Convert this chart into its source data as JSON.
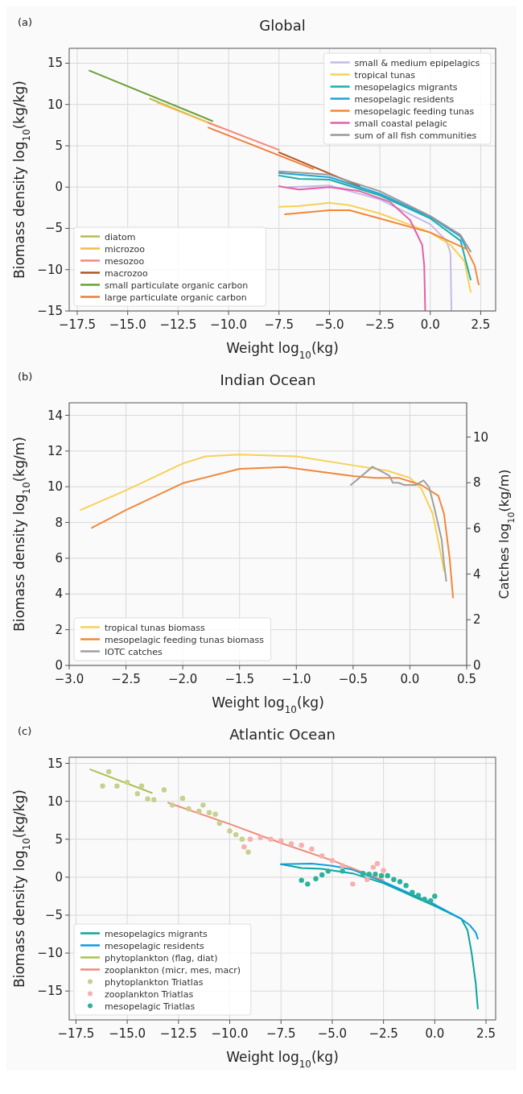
{
  "chart_data": [
    {
      "type": "line",
      "title": "Global",
      "xlabel": "Weight log$_{10}$(kg)",
      "ylabel": "Biomass density log$_{10}$(kg/kg)",
      "annotations": [
        "(a)"
      ],
      "xlim": [
        -17.9,
        3.24
      ],
      "ylim": [
        -15,
        16.8
      ],
      "xticks": [
        {
          "value": -17.5,
          "label": "−17.5"
        },
        {
          "value": -15,
          "label": "−15.0"
        },
        {
          "value": -12.5,
          "label": "−12.5"
        },
        {
          "value": -10,
          "label": "−10.0"
        },
        {
          "value": -7.5,
          "label": "−7.5"
        },
        {
          "value": -5,
          "label": "−5.0"
        },
        {
          "value": -2.5,
          "label": "−2.5"
        },
        {
          "value": 0,
          "label": "0.0"
        },
        {
          "value": 2.5,
          "label": "2.5"
        }
      ],
      "yticks": [
        {
          "value": -15,
          "label": "−15"
        },
        {
          "value": -10,
          "label": "−10"
        },
        {
          "value": -5,
          "label": "−5"
        },
        0,
        5,
        10,
        15
      ],
      "grid": true,
      "legend": "bottom left",
      "series": [
        {
          "name": "diatom",
          "color": "#b5bd4c",
          "x": [
            -13.9,
            -10.8
          ],
          "values": [
            10.7,
            7.6
          ]
        },
        {
          "name": "microzoo",
          "color": "#f6b94c",
          "x": [
            -13.5,
            -10.5
          ],
          "values": [
            10.2,
            7.3
          ]
        },
        {
          "name": "mesozoo",
          "color": "#f7877a",
          "x": [
            -11,
            -7.5
          ],
          "values": [
            7.8,
            4.5
          ]
        },
        {
          "name": "macrozoo",
          "color": "#b5531c",
          "x": [
            -7.5,
            -3.5
          ],
          "values": [
            4.2,
            0.1
          ]
        },
        {
          "name": "small particulate organic carbon",
          "color": "#6a9f35",
          "x": [
            -16.9,
            -10.8
          ],
          "values": [
            14.1,
            8.0
          ]
        },
        {
          "name": "large particulate organic carbon",
          "color": "#ef7d3a",
          "x": [
            -11,
            -5.8
          ],
          "values": [
            7.2,
            2.2
          ]
        },
        {
          "name": "small & medium epipelagics",
          "color": "#c7b9e8",
          "x": [
            -7,
            -5,
            -2.5,
            0,
            0.8,
            1.0,
            1.05
          ],
          "values": [
            0.0,
            0.2,
            -1.5,
            -4.5,
            -6.5,
            -8,
            -15
          ]
        },
        {
          "name": "tropical tunas",
          "color": "#f7d154",
          "x": [
            -7.5,
            -6.5,
            -5,
            -4,
            -2.5,
            0,
            1,
            1.7,
            2
          ],
          "values": [
            -2.4,
            -2.3,
            -1.9,
            -2.2,
            -3.2,
            -5.5,
            -7,
            -9,
            -12.7
          ]
        },
        {
          "name": "mesopelagics migrants",
          "color": "#1aaeaa",
          "x": [
            -7.5,
            -6.5,
            -5,
            -2.5,
            0,
            1.5,
            2.0
          ],
          "values": [
            1.4,
            1.0,
            0.9,
            -1.0,
            -3.8,
            -6.5,
            -11.2
          ]
        },
        {
          "name": "mesopelagic residents",
          "color": "#20a4d8",
          "x": [
            -7.5,
            -5,
            -2.5,
            0,
            1.5,
            1.8
          ],
          "values": [
            1.7,
            1.2,
            -0.8,
            -3.6,
            -6.0,
            -7.5
          ]
        },
        {
          "name": "mesopelagic feeding tunas",
          "color": "#f0883a",
          "x": [
            -7.2,
            -5,
            -4,
            -2.5,
            0,
            1.8,
            2.2,
            2.4
          ],
          "values": [
            -3.3,
            -2.8,
            -2.8,
            -3.8,
            -5.5,
            -7.5,
            -9.5,
            -11.8
          ]
        },
        {
          "name": "small coastal pelagic",
          "color": "#e55fa6",
          "x": [
            -7.5,
            -6.5,
            -5,
            -3.5,
            -2,
            -1,
            -0.4,
            -0.3,
            -0.25
          ],
          "values": [
            0.1,
            -0.3,
            0,
            -0.5,
            -1.8,
            -4,
            -7,
            -9.5,
            -15
          ]
        },
        {
          "name": "sum of all fish communities",
          "color": "#999999",
          "x": [
            -7.5,
            -5,
            -2.5,
            0,
            1.5,
            2
          ],
          "values": [
            1.9,
            1.5,
            -0.5,
            -3.5,
            -5.8,
            -7.8
          ]
        }
      ]
    },
    {
      "type": "line",
      "title": "Indian Ocean",
      "xlabel": "Weight log$_{10}$(kg)",
      "ylabel": "Biomass density log$_{10}$(kg/m)",
      "y2label": "Catches log$_{10}$(kg/m)",
      "annotations": [
        "(b)"
      ],
      "xlim": [
        -3.0,
        0.5
      ],
      "ylim": [
        0,
        14.7
      ],
      "y2lim": [
        0,
        11.5
      ],
      "xticks": [
        {
          "value": -3,
          "label": "−3.0"
        },
        {
          "value": -2.5,
          "label": "−2.5"
        },
        {
          "value": -2,
          "label": "−2.0"
        },
        {
          "value": -1.5,
          "label": "−1.5"
        },
        {
          "value": -1,
          "label": "−1.0"
        },
        {
          "value": -0.5,
          "label": "−0.5"
        },
        {
          "value": 0,
          "label": "0.0"
        },
        0.5
      ],
      "yticks": [
        0,
        2,
        4,
        6,
        8,
        10,
        12,
        14
      ],
      "y2ticks": [
        0,
        2,
        4,
        6,
        8,
        10
      ],
      "grid": true,
      "legend": "bottom left",
      "series": [
        {
          "name": "tropical tunas biomass",
          "color": "#f7d154",
          "x": [
            -2.9,
            -2.5,
            -2,
            -1.8,
            -1.5,
            -1,
            -0.5,
            -0.2,
            0,
            0.1,
            0.2,
            0.28,
            0.3
          ],
          "values": [
            8.7,
            9.8,
            11.3,
            11.7,
            11.8,
            11.7,
            11.2,
            10.9,
            10.5,
            9.9,
            8.5,
            6.0,
            5.3
          ]
        },
        {
          "name": "mesopelagic feeding tunas biomass",
          "color": "#f0883a",
          "x": [
            -2.8,
            -2.5,
            -2,
            -1.5,
            -1.1,
            -0.5,
            -0.3,
            -0.1,
            0.1,
            0.25,
            0.3,
            0.35,
            0.38
          ],
          "values": [
            7.7,
            8.7,
            10.2,
            11.0,
            11.1,
            10.6,
            10.5,
            10.5,
            10.1,
            9.5,
            8.5,
            6.0,
            3.8
          ]
        },
        {
          "name": "IOTC catches",
          "color": "#a0a0a0",
          "axis": "y2",
          "x": [
            -0.52,
            -0.4,
            -0.33,
            -0.25,
            -0.18,
            -0.15,
            -0.1,
            -0.05,
            0,
            0.05,
            0.12,
            0.17,
            0.22,
            0.28,
            0.3,
            0.32
          ],
          "values": [
            7.9,
            8.4,
            8.7,
            8.5,
            8.3,
            8.0,
            8.0,
            7.9,
            7.9,
            7.9,
            8.1,
            7.8,
            6.8,
            5.5,
            4.5,
            3.7
          ]
        }
      ]
    },
    {
      "type": "line",
      "title": "Atlantic Ocean",
      "xlabel": "Weight log$_{10}$(kg)",
      "ylabel": "Biomass density log$_{10}$(kg/kg)",
      "annotations": [
        "(c)"
      ],
      "xlim": [
        -17.83,
        2.97
      ],
      "ylim": [
        -18.8,
        15.8
      ],
      "xticks": [
        {
          "value": -17.5,
          "label": "−17.5"
        },
        {
          "value": -15,
          "label": "−15.0"
        },
        {
          "value": -12.5,
          "label": "−12.5"
        },
        {
          "value": -10,
          "label": "−10.0"
        },
        {
          "value": -7.5,
          "label": "−7.5"
        },
        {
          "value": -5,
          "label": "−5.0"
        },
        {
          "value": -2.5,
          "label": "−2.5"
        },
        {
          "value": 0,
          "label": "0.0"
        },
        {
          "value": 2.5,
          "label": "2.5"
        }
      ],
      "yticks": [
        {
          "value": -15,
          "label": "−15"
        },
        {
          "value": -10,
          "label": "−10"
        },
        {
          "value": -5,
          "label": "−5"
        },
        0,
        5,
        10,
        15
      ],
      "grid": true,
      "legend": "bottom left",
      "series": [
        {
          "name": "mesopelagics migrants",
          "color": "#0ba59a",
          "x": [
            -7.5,
            -6.5,
            -5.5,
            -5,
            -4,
            -2.5,
            0,
            1.3,
            1.6,
            1.8,
            2.0,
            2.1
          ],
          "values": [
            1.7,
            1.2,
            1.1,
            0.9,
            0.5,
            -0.8,
            -3.8,
            -5.5,
            -7,
            -10,
            -14,
            -17.3
          ]
        },
        {
          "name": "mesopelagic residents",
          "color": "#0c9ee0",
          "x": [
            -7.5,
            -6,
            -5,
            -4,
            -2.5,
            0,
            1.3,
            1.7,
            2.0,
            2.1
          ],
          "values": [
            1.7,
            1.8,
            1.5,
            1.0,
            -0.6,
            -3.6,
            -5.5,
            -6.3,
            -7.3,
            -8.1
          ]
        },
        {
          "name": "phytoplankton (flag, diat)",
          "color": "#a7c44e",
          "x": [
            -16.8,
            -13.8
          ],
          "values": [
            14.2,
            11.1
          ]
        },
        {
          "name": "zooplankton (micr, mes, macr)",
          "color": "#f08a78",
          "x": [
            -13,
            -10,
            -7.5,
            -5,
            -2.5
          ],
          "values": [
            9.8,
            7.0,
            4.5,
            2.2,
            -0.4
          ]
        },
        {
          "name": "phytoplankton Triatlas",
          "type": "scatter",
          "marker": "circle",
          "color": "#c9cf8e",
          "x": [
            -16.2,
            -15.9,
            -15.5,
            -15,
            -14.5,
            -14.3,
            -14,
            -13.7,
            -13.2,
            -12.8,
            -12.3,
            -12,
            -11.5,
            -11.3,
            -11,
            -10.7,
            -10.5,
            -10,
            -9.7,
            -9.4,
            -9.1
          ],
          "values": [
            12,
            13.9,
            12,
            12.5,
            11,
            12,
            10.3,
            10.2,
            11.5,
            9.5,
            10.4,
            9,
            8.7,
            9.5,
            8.5,
            8.3,
            7.1,
            6.1,
            5.6,
            5.0,
            3.3
          ]
        },
        {
          "name": "zooplankton Triatlas",
          "type": "scatter",
          "marker": "circle",
          "color": "#f6b0b0",
          "x": [
            -9.3,
            -9,
            -8.5,
            -8,
            -7.5,
            -7,
            -6.5,
            -6,
            -5.5,
            -5,
            -4.5,
            -4,
            -3.3,
            -3,
            -2.8,
            -2.5
          ],
          "values": [
            4.0,
            5.0,
            5.2,
            5.0,
            4.8,
            4.4,
            4.2,
            3.7,
            2.8,
            2.2,
            1.5,
            -0.9,
            -0.3,
            1.3,
            1.8,
            0.9
          ]
        },
        {
          "name": "mesopelagic Triatlas",
          "type": "scatter",
          "marker": "circle",
          "color": "#2bb39a",
          "x": [
            -6.5,
            -6.2,
            -5.8,
            -5.5,
            -5.2,
            -4.5,
            -3.5,
            -3.2,
            -2.9,
            -2.6,
            -2.3,
            -2.0,
            -1.7,
            -1.4,
            -1.1,
            -0.8,
            -0.5,
            -0.2,
            0
          ],
          "values": [
            -0.4,
            -0.9,
            -0.2,
            0.3,
            0.8,
            0.8,
            0.5,
            0.4,
            0.4,
            0.2,
            0.2,
            -0.3,
            -0.6,
            -1.1,
            -2.0,
            -2.4,
            -2.9,
            -3.1,
            -2.5
          ]
        }
      ]
    }
  ]
}
